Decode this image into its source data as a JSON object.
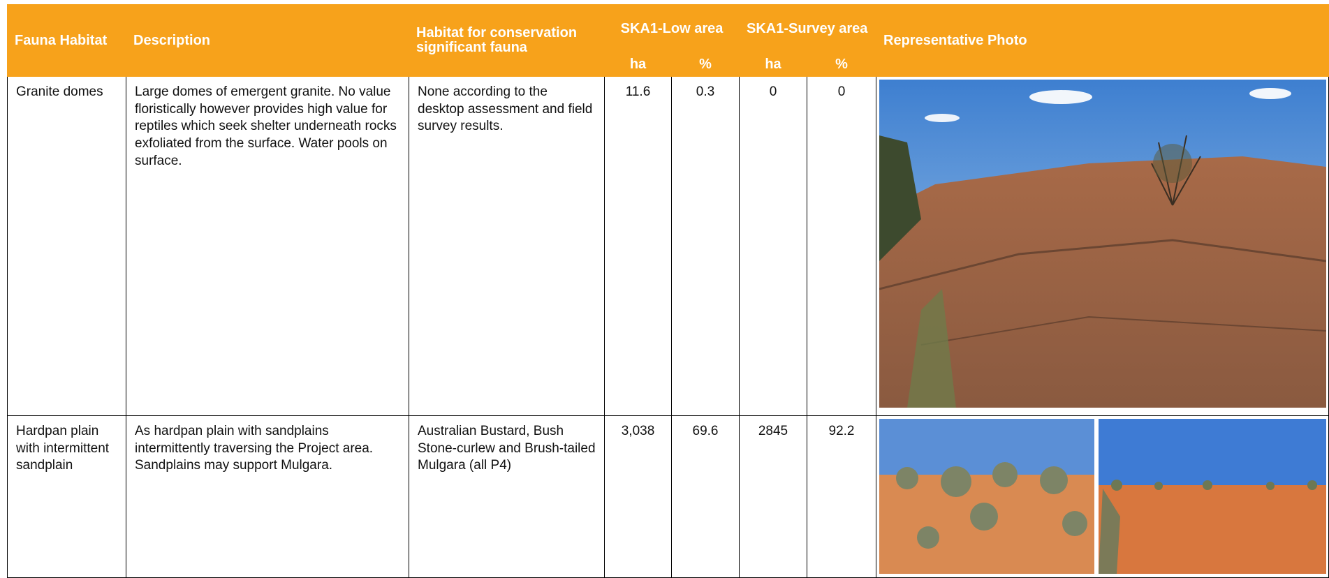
{
  "table": {
    "header": [
      "Fauna Habitat",
      "Description",
      "Habitat for conservation significant fauna",
      "SKA1-Low area",
      "SKA1-Survey area",
      "Representative Photo"
    ],
    "subheader": [
      "ha",
      "%",
      "ha",
      "%"
    ],
    "rows": [
      [
        "Granite domes",
        "Large domes of emergent granite. No value floristically however provides high value for reptiles which seek shelter underneath rocks exfoliated from the surface. Water pools on surface.",
        "None according to the desktop assessment and field survey results.",
        "11.6",
        "0.3",
        "0",
        "0"
      ],
      [
        "Hardpan plain with intermittent sandplain",
        "As hardpan plain with sandplains intermittently traversing the Project area. Sandplains may support Mulgara.",
        "Australian Bustard, Bush Stone-curlew and Brush-tailed Mulgara (all P4)",
        "3,038",
        "69.6",
        "2845",
        "92.2"
      ]
    ]
  }
}
